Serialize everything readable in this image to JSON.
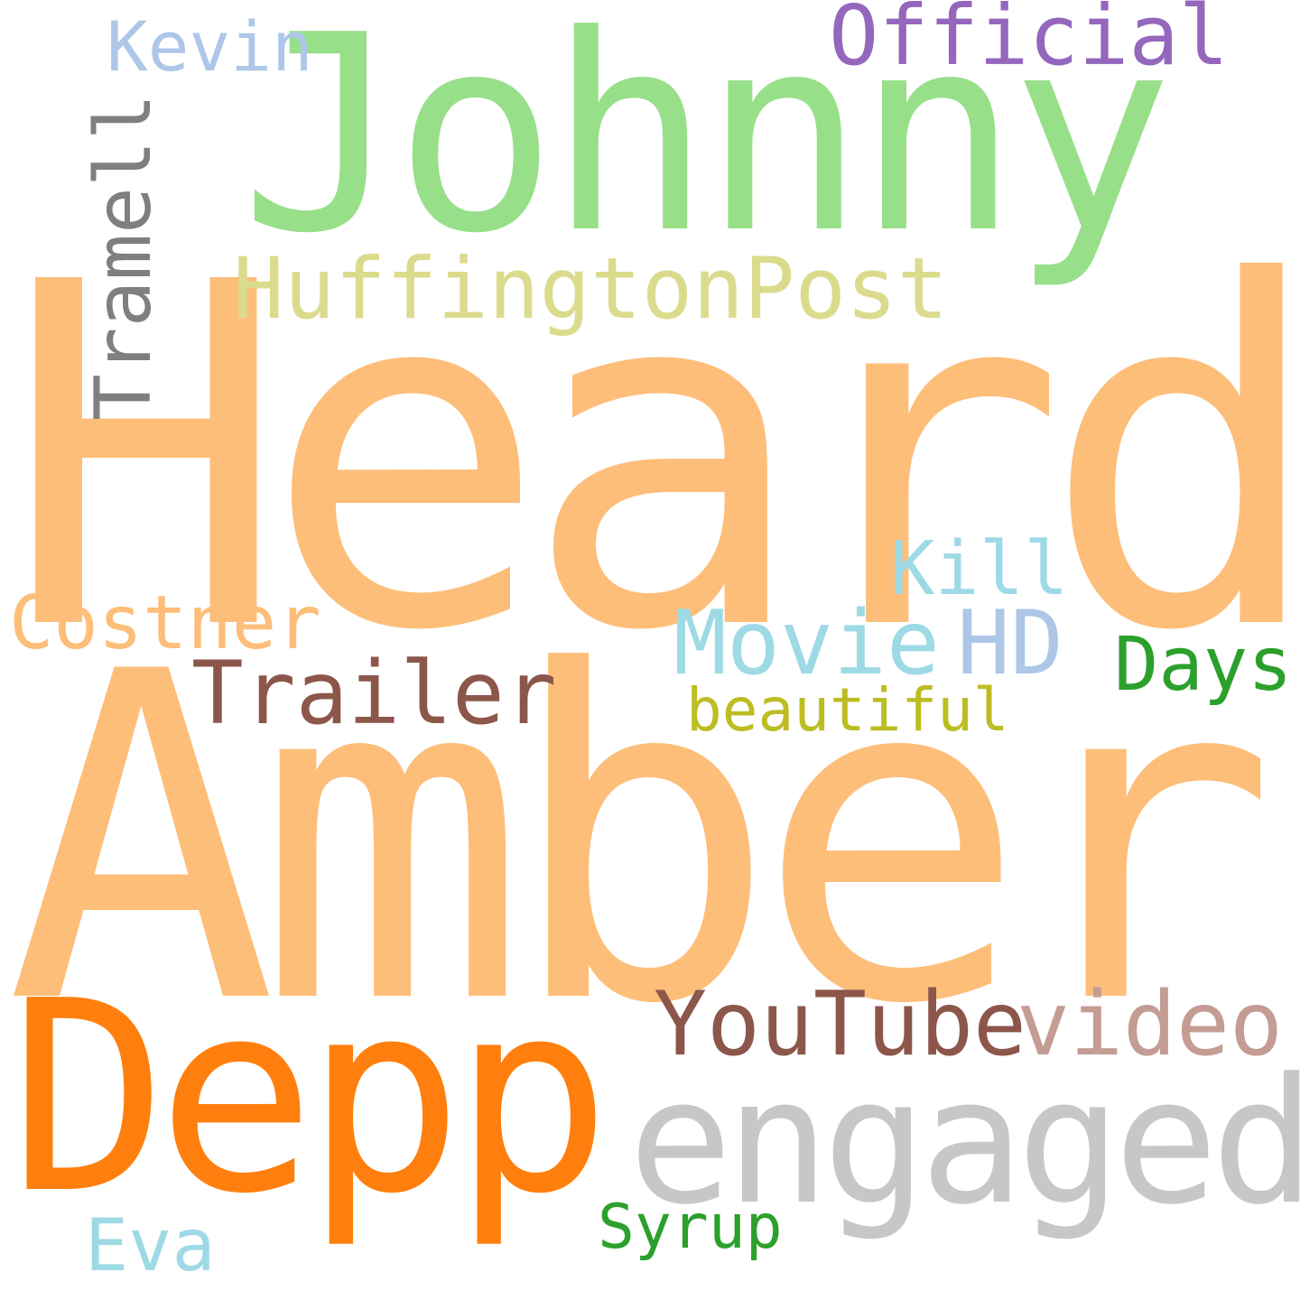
{
  "words": {
    "heard": {
      "text": "Heard",
      "color": "#fdbe7a"
    },
    "amber": {
      "text": "Amber",
      "color": "#fdbe7a"
    },
    "johnny": {
      "text": "Johnny",
      "color": "#98df8a"
    },
    "depp": {
      "text": "Depp",
      "color": "#ff7f0e"
    },
    "engaged": {
      "text": "engaged",
      "color": "#c7c7c7"
    },
    "huffington": {
      "text": "HuffingtonPost",
      "color": "#dbdb8d"
    },
    "official": {
      "text": "Official",
      "color": "#9467bd"
    },
    "youtube": {
      "text": "YouTube",
      "color": "#8c564b"
    },
    "video": {
      "text": "video",
      "color": "#c49c94"
    },
    "movie": {
      "text": "Movie",
      "color": "#9edae5"
    },
    "hd": {
      "text": "HD",
      "color": "#aec7e8"
    },
    "kill": {
      "text": "Kill",
      "color": "#9edae5"
    },
    "trailer": {
      "text": "Trailer",
      "color": "#8c564b"
    },
    "days": {
      "text": "Days",
      "color": "#2ca02c"
    },
    "costner": {
      "text": "Costner",
      "color": "#fdbe7a"
    },
    "beautiful": {
      "text": "beautiful",
      "color": "#bcbd22"
    },
    "kevin": {
      "text": "Kevin",
      "color": "#aec7e8"
    },
    "eva": {
      "text": "Eva",
      "color": "#9edae5"
    },
    "syrup": {
      "text": "Syrup",
      "color": "#2ca02c"
    },
    "tramell": {
      "text": "Tramell",
      "color": "#7f7f7f"
    }
  }
}
